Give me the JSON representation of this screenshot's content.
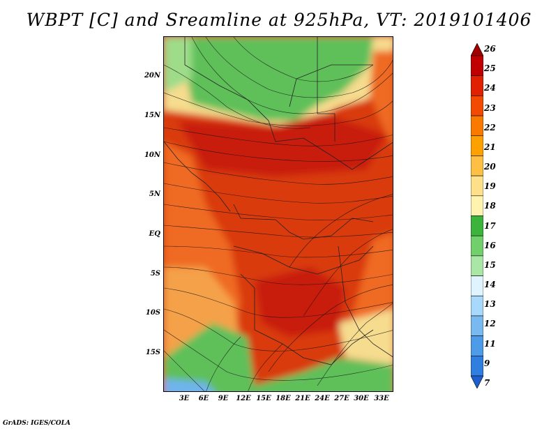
{
  "title": "WBPT [C] and Sreamline at 925hPa, VT: 2019101406",
  "credit": "GrADS: IGES/COLA",
  "lat_labels": [
    "20N",
    "15N",
    "10N",
    "5N",
    "EQ",
    "5S",
    "10S",
    "15S"
  ],
  "lon_labels": [
    "3E",
    "6E",
    "9E",
    "12E",
    "15E",
    "18E",
    "21E",
    "24E",
    "27E",
    "30E",
    "33E"
  ],
  "colorbar": {
    "labels": [
      "26",
      "25",
      "24",
      "23",
      "22",
      "21",
      "20",
      "19",
      "18",
      "17",
      "16",
      "15",
      "14",
      "13",
      "12",
      "11",
      "9",
      "7"
    ],
    "colors": [
      "#a00000",
      "#c00000",
      "#e02000",
      "#f24a00",
      "#fa7a00",
      "#fea000",
      "#fec044",
      "#fee08a",
      "#fef4b0",
      "#3cb43c",
      "#72d06c",
      "#aae6a6",
      "#e0f4ff",
      "#a8d8fa",
      "#78baf0",
      "#4e9ce8",
      "#2f7ee0",
      "#1e5fd0"
    ]
  },
  "map_colors": {
    "hot": "#d93a10",
    "very_hot": "#c81e08",
    "warm": "#ef6a22",
    "mild": "#f5a14a",
    "cool_yellow": "#f6dc8e",
    "green": "#5ec05a",
    "light_green": "#9edc8a",
    "blue": "#6fb4ee"
  }
}
